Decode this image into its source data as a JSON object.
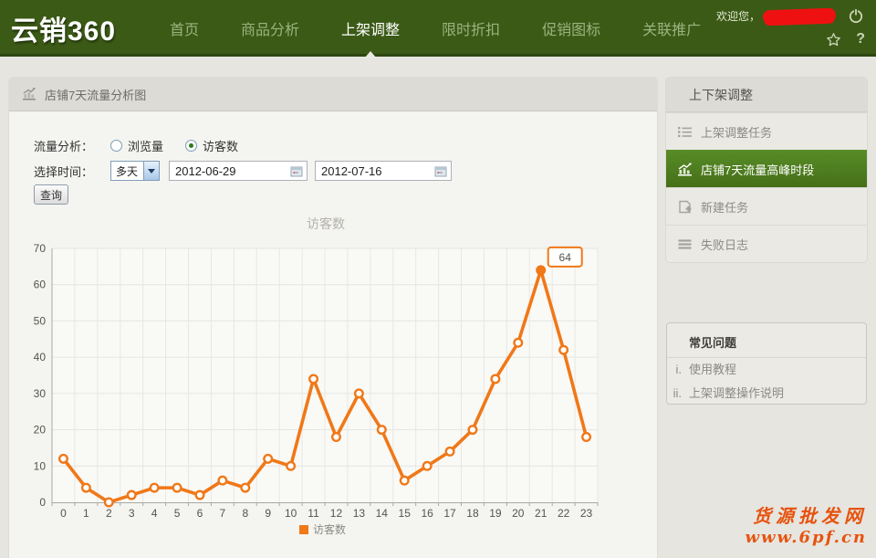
{
  "nav": {
    "logo": "云销360",
    "items": [
      {
        "label": "首页",
        "active": false
      },
      {
        "label": "商品分析",
        "active": false
      },
      {
        "label": "上架调整",
        "active": true
      },
      {
        "label": "限时折扣",
        "active": false
      },
      {
        "label": "促销图标",
        "active": false
      },
      {
        "label": "关联推广",
        "active": false
      }
    ],
    "welcome": "欢迎您，",
    "help_glyph": "?"
  },
  "panel": {
    "title": "店铺7天流量分析图",
    "form": {
      "traffic_label": "流量分析：",
      "radio_pageviews": "浏览量",
      "radio_visitors": "访客数",
      "time_label": "选择时间：",
      "period_select": "多天",
      "date_from": "2012-06-29",
      "date_to": "2012-07-16",
      "query_button": "查询"
    }
  },
  "chart_data": {
    "type": "line",
    "title": "访客数",
    "x": [
      0,
      1,
      2,
      3,
      4,
      5,
      6,
      7,
      8,
      9,
      10,
      11,
      12,
      13,
      14,
      15,
      16,
      17,
      18,
      19,
      20,
      21,
      22,
      23
    ],
    "series": [
      {
        "name": "访客数",
        "color": "#f07818",
        "values": [
          12,
          4,
          0,
          2,
          4,
          4,
          2,
          6,
          4,
          12,
          10,
          34,
          18,
          30,
          20,
          6,
          10,
          14,
          20,
          34,
          44,
          64,
          42,
          18
        ]
      }
    ],
    "xlabel": "",
    "ylabel": "",
    "ylim": [
      0,
      70
    ],
    "ytick_step": 10,
    "grid": true,
    "legend_position": "bottom",
    "peak_label": {
      "x": 21,
      "value": 64
    }
  },
  "sidebar": {
    "title": "上下架调整",
    "items": [
      {
        "label": "上架调整任务",
        "icon": "list-icon",
        "active": false
      },
      {
        "label": "店铺7天流量高峰时段",
        "icon": "chart-icon",
        "active": true
      },
      {
        "label": "新建任务",
        "icon": "new-task-icon",
        "active": false
      },
      {
        "label": "失败日志",
        "icon": "log-icon",
        "active": false
      }
    ],
    "faq": {
      "title": "常见问题",
      "items": [
        {
          "index": "i.",
          "label": "使用教程"
        },
        {
          "index": "ii.",
          "label": "上架调整操作说明"
        }
      ]
    }
  },
  "watermark": {
    "line1": "货源批发网",
    "line2": "www.6pf.cn"
  },
  "colors": {
    "nav_green": "#3b5a16",
    "active_item_green": "#4d7d1f",
    "line_orange": "#f07818",
    "watermark_red": "#e7530f",
    "page_bg": "#e6e5df"
  }
}
